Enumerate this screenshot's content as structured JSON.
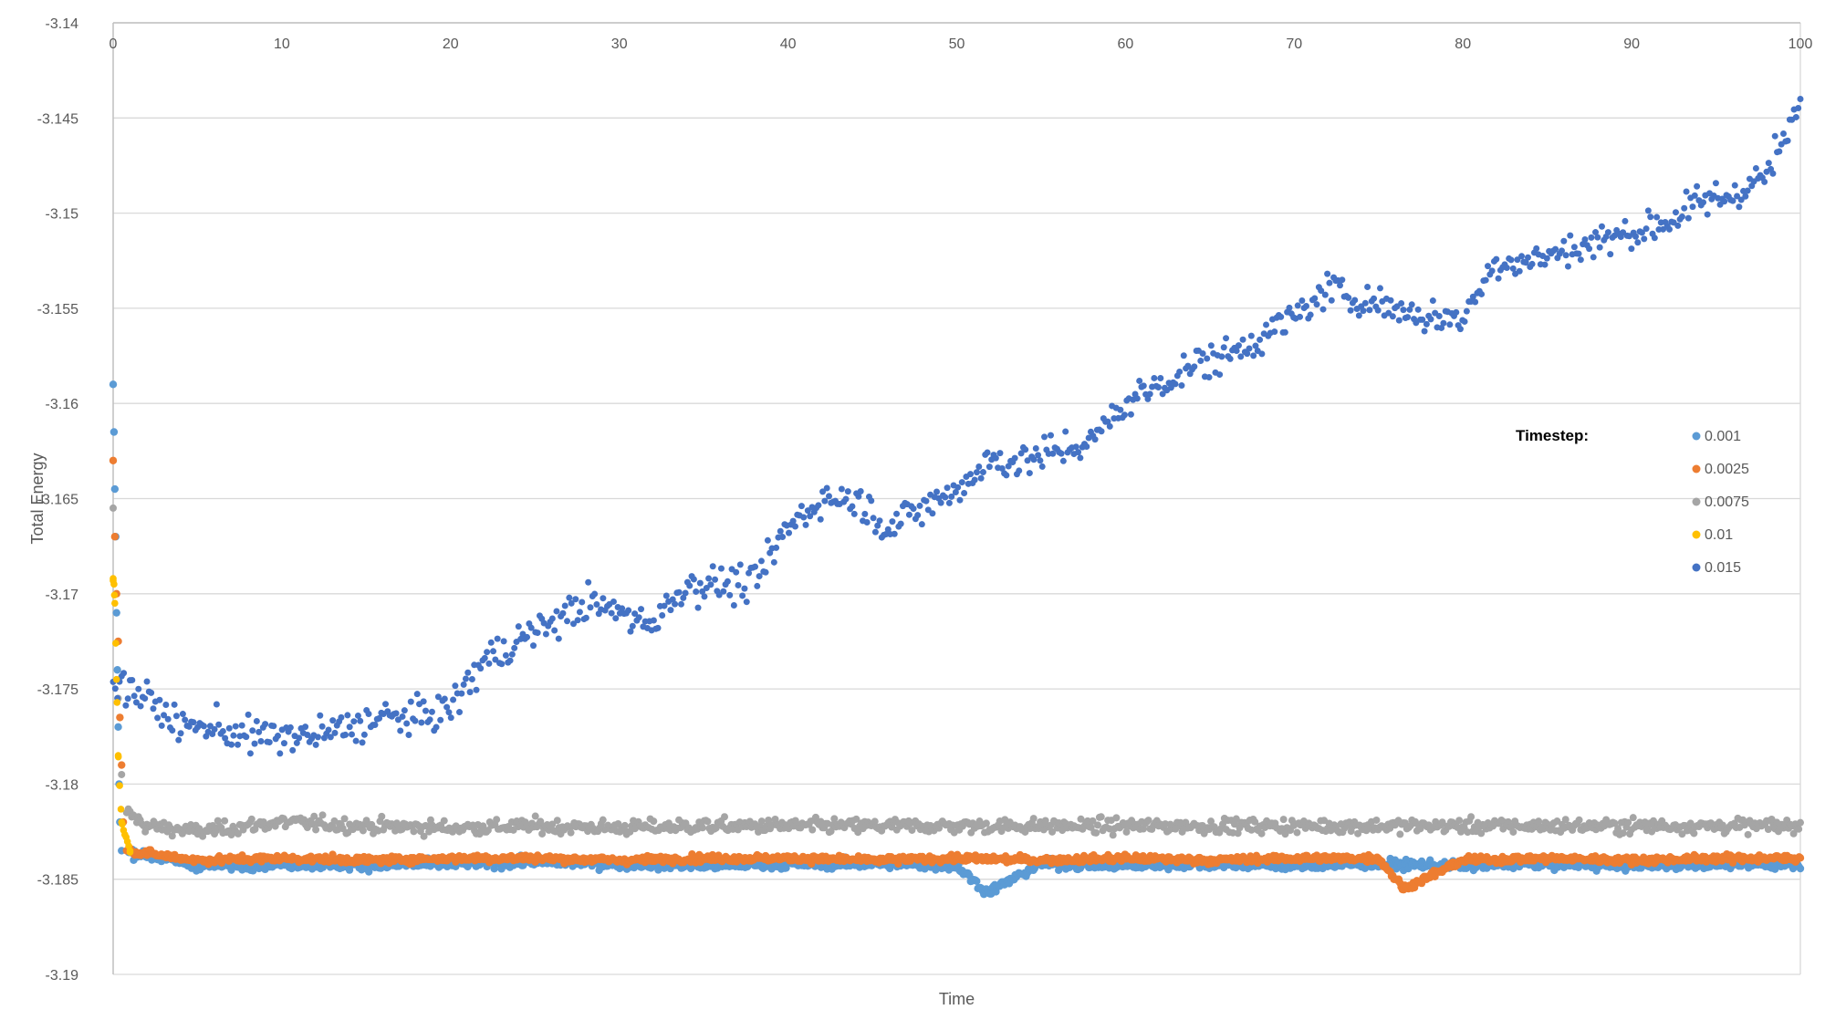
{
  "chart_data": {
    "type": "scatter",
    "title": "",
    "xlabel": "Time",
    "ylabel": "Total Energy",
    "xlim": [
      0,
      100
    ],
    "ylim": [
      -3.19,
      -3.14
    ],
    "x_ticks": [
      0,
      10,
      20,
      30,
      40,
      50,
      60,
      70,
      80,
      90,
      100
    ],
    "y_ticks": [
      -3.14,
      -3.145,
      -3.15,
      -3.155,
      -3.16,
      -3.165,
      -3.17,
      -3.175,
      -3.18,
      -3.185,
      -3.19
    ],
    "x_tick_labels": [
      "0",
      "10",
      "20",
      "30",
      "40",
      "50",
      "60",
      "70",
      "80",
      "90",
      "100"
    ],
    "y_tick_labels": [
      "-3.14",
      "-3.145",
      "-3.15",
      "-3.155",
      "-3.16",
      "-3.165",
      "-3.17",
      "-3.175",
      "-3.18",
      "-3.185",
      "-3.19"
    ],
    "x_axis_position": "top",
    "grid": "horizontal",
    "legend": {
      "title": "Timestep:",
      "position": "right"
    },
    "series": [
      {
        "name": "0.001",
        "color": "#5B9BD5",
        "description_points": [
          [
            0,
            -3.159
          ],
          [
            0.05,
            -3.1615
          ],
          [
            0.1,
            -3.1645
          ],
          [
            0.15,
            -3.167
          ],
          [
            0.2,
            -3.171
          ],
          [
            0.25,
            -3.174
          ],
          [
            0.3,
            -3.177
          ],
          [
            0.35,
            -3.18
          ],
          [
            0.4,
            -3.182
          ],
          [
            0.5,
            -3.1835
          ],
          [
            5,
            -3.1843
          ],
          [
            10,
            -3.1842
          ],
          [
            15,
            -3.1843
          ],
          [
            20,
            -3.1842
          ],
          [
            25,
            -3.1841
          ],
          [
            30,
            -3.1842
          ],
          [
            35,
            -3.1843
          ],
          [
            40,
            -3.1842
          ],
          [
            45,
            -3.1842
          ],
          [
            50,
            -3.1843
          ],
          [
            51.8,
            -3.1857
          ],
          [
            55,
            -3.1842
          ],
          [
            60,
            -3.1843
          ],
          [
            65,
            -3.1842
          ],
          [
            70,
            -3.1843
          ],
          [
            75,
            -3.1842
          ],
          [
            80,
            -3.1843
          ],
          [
            85,
            -3.1842
          ],
          [
            90,
            -3.1843
          ],
          [
            95,
            -3.1842
          ],
          [
            100,
            -3.1842
          ]
        ]
      },
      {
        "name": "0.0025",
        "color": "#ED7D31",
        "description_points": [
          [
            0,
            -3.163
          ],
          [
            0.1,
            -3.167
          ],
          [
            0.2,
            -3.17
          ],
          [
            0.3,
            -3.1725
          ],
          [
            0.4,
            -3.1765
          ],
          [
            0.5,
            -3.179
          ],
          [
            0.6,
            -3.182
          ],
          [
            0.8,
            -3.1835
          ],
          [
            5,
            -3.184
          ],
          [
            10,
            -3.1839
          ],
          [
            15,
            -3.184
          ],
          [
            20,
            -3.1839
          ],
          [
            25,
            -3.1839
          ],
          [
            30,
            -3.184
          ],
          [
            35,
            -3.1839
          ],
          [
            40,
            -3.1839
          ],
          [
            45,
            -3.184
          ],
          [
            50,
            -3.1839
          ],
          [
            55,
            -3.184
          ],
          [
            60,
            -3.1839
          ],
          [
            65,
            -3.184
          ],
          [
            70,
            -3.1839
          ],
          [
            75,
            -3.1839
          ],
          [
            76.5,
            -3.1855
          ],
          [
            80,
            -3.184
          ],
          [
            85,
            -3.1839
          ],
          [
            90,
            -3.184
          ],
          [
            95,
            -3.1839
          ],
          [
            100,
            -3.1839
          ]
        ]
      },
      {
        "name": "0.0075",
        "color": "#A5A5A5",
        "description_points": [
          [
            0,
            -3.1655
          ],
          [
            0.3,
            -3.1755
          ],
          [
            0.5,
            -3.1795
          ],
          [
            0.8,
            -3.1815
          ],
          [
            2,
            -3.1822
          ],
          [
            5,
            -3.1825
          ],
          [
            10,
            -3.182
          ],
          [
            15,
            -3.1822
          ],
          [
            20,
            -3.1823
          ],
          [
            25,
            -3.1822
          ],
          [
            30,
            -3.1823
          ],
          [
            35,
            -3.1822
          ],
          [
            40,
            -3.1822
          ],
          [
            45,
            -3.1822
          ],
          [
            50,
            -3.1822
          ],
          [
            55,
            -3.1822
          ],
          [
            60,
            -3.1822
          ],
          [
            65,
            -3.1822
          ],
          [
            70,
            -3.1822
          ],
          [
            75,
            -3.1822
          ],
          [
            80,
            -3.1822
          ],
          [
            85,
            -3.1822
          ],
          [
            90,
            -3.1822
          ],
          [
            95,
            -3.1822
          ],
          [
            100,
            -3.1822
          ]
        ]
      },
      {
        "name": "0.01",
        "color": "#FFC000",
        "description_points": [
          [
            0,
            -3.1692
          ],
          [
            0.05,
            -3.1695
          ],
          [
            0.1,
            -3.1705
          ],
          [
            0.2,
            -3.1745
          ],
          [
            0.3,
            -3.1785
          ],
          [
            0.5,
            -3.182
          ],
          [
            1,
            -3.1835
          ]
        ]
      },
      {
        "name": "0.015",
        "color": "#4472C4",
        "description_points": [
          [
            0,
            -3.1745
          ],
          [
            2,
            -3.1755
          ],
          [
            4,
            -3.177
          ],
          [
            6,
            -3.177
          ],
          [
            8,
            -3.1775
          ],
          [
            10,
            -3.1775
          ],
          [
            12,
            -3.1775
          ],
          [
            14,
            -3.177
          ],
          [
            16,
            -3.1765
          ],
          [
            18,
            -3.1765
          ],
          [
            20,
            -3.176
          ],
          [
            22,
            -3.1735
          ],
          [
            24,
            -3.1725
          ],
          [
            26,
            -3.1715
          ],
          [
            28,
            -3.1705
          ],
          [
            30,
            -3.171
          ],
          [
            32,
            -3.1715
          ],
          [
            34,
            -3.1695
          ],
          [
            36,
            -3.1695
          ],
          [
            38,
            -3.1695
          ],
          [
            40,
            -3.1665
          ],
          [
            42,
            -3.165
          ],
          [
            44,
            -3.165
          ],
          [
            46,
            -3.1665
          ],
          [
            48,
            -3.1655
          ],
          [
            50,
            -3.1645
          ],
          [
            52,
            -3.163
          ],
          [
            54,
            -3.163
          ],
          [
            56,
            -3.1625
          ],
          [
            58,
            -3.162
          ],
          [
            60,
            -3.16
          ],
          [
            62,
            -3.159
          ],
          [
            64,
            -3.158
          ],
          [
            66,
            -3.1575
          ],
          [
            68,
            -3.1565
          ],
          [
            70,
            -3.1555
          ],
          [
            72,
            -3.154
          ],
          [
            74,
            -3.1545
          ],
          [
            76,
            -3.155
          ],
          [
            78,
            -3.1555
          ],
          [
            80,
            -3.1555
          ],
          [
            82,
            -3.1525
          ],
          [
            84,
            -3.1525
          ],
          [
            86,
            -3.152
          ],
          [
            88,
            -3.1515
          ],
          [
            90,
            -3.151
          ],
          [
            92,
            -3.1505
          ],
          [
            94,
            -3.1495
          ],
          [
            96,
            -3.149
          ],
          [
            98,
            -3.148
          ],
          [
            100,
            -3.1445
          ]
        ]
      }
    ]
  }
}
